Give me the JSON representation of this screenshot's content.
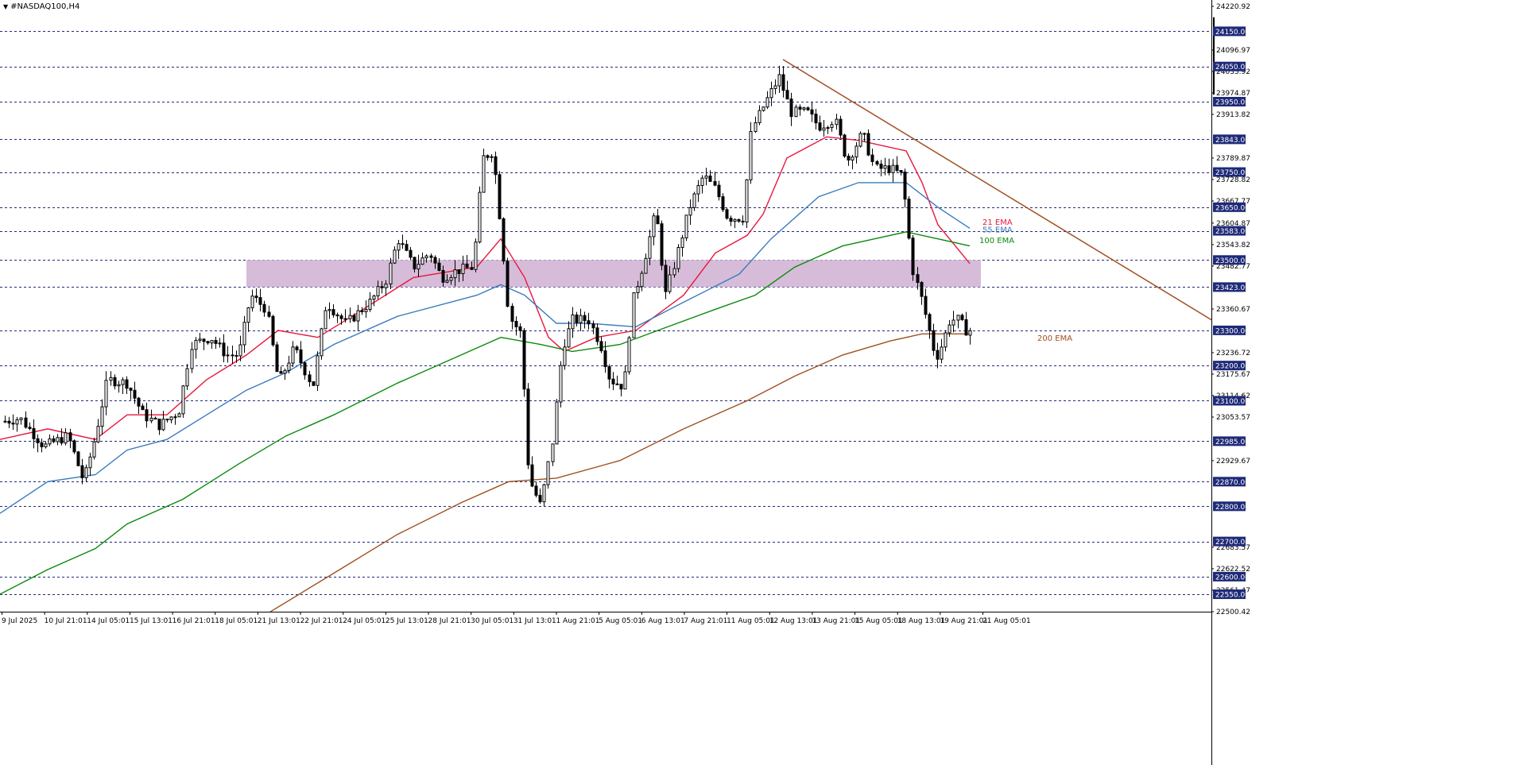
{
  "chart_data": {
    "type": "candlestick",
    "title": "#NASDAQ100,H4",
    "ylim": [
      22500.42,
      24220.92
    ],
    "y_tick_labels": [
      "24220.92",
      "24096.97",
      "24035.92",
      "23974.87",
      "23913.82",
      "23789.87",
      "23728.82",
      "23667.77",
      "23604.87",
      "23543.82",
      "23482.77",
      "23360.67",
      "23236.72",
      "23175.67",
      "23114.62",
      "23053.57",
      "22929.67",
      "22683.57",
      "22622.52",
      "22561.47",
      "22500.42"
    ],
    "level_lines": [
      "24150.00",
      "24050.00",
      "23950.00",
      "23843.00",
      "23750.00",
      "23650.00",
      "23583.00",
      "23500.00",
      "23423.00",
      "23300.00",
      "23200.00",
      "23100.00",
      "22985.00",
      "22870.00",
      "22800.00",
      "22700.00",
      "22600.00",
      "22550.00"
    ],
    "x_tick_labels": [
      "9 Jul 2025",
      "10 Jul 21:01",
      "14 Jul 05:01",
      "15 Jul 13:01",
      "16 Jul 21:01",
      "18 Jul 05:01",
      "21 Jul 13:01",
      "22 Jul 21:01",
      "24 Jul 05:01",
      "25 Jul 13:01",
      "28 Jul 21:01",
      "30 Jul 05:01",
      "31 Jul 13:01",
      "1 Aug 21:01",
      "5 Aug 05:01",
      "6 Aug 13:01",
      "7 Aug 21:01",
      "11 Aug 05:01",
      "12 Aug 13:01",
      "13 Aug 21:01",
      "15 Aug 05:01",
      "18 Aug 13:01",
      "19 Aug 21:01",
      "21 Aug 05:01"
    ],
    "series": [
      {
        "name": "21 EMA",
        "color": "#e8173c",
        "label_position": "right"
      },
      {
        "name": "55 EMA",
        "color": "#3a7bbf",
        "label_position": "right"
      },
      {
        "name": "100 EMA",
        "color": "#0a8a0a",
        "label_position": "right"
      },
      {
        "name": "200 EMA",
        "color": "#a0501e",
        "label_position": "right"
      }
    ],
    "zone": {
      "from": 23423.0,
      "to": 23500.0,
      "color": "#d6bcd9"
    },
    "trendline": {
      "color": "#a0501e",
      "from_price": 24070,
      "to_price": 23330
    }
  },
  "colors": {
    "level_line": "#1e2a78",
    "price_label_bg": "#1e2a78",
    "price_label_text": "#ffffff",
    "axis_text": "#000000",
    "candle": "#000000"
  }
}
